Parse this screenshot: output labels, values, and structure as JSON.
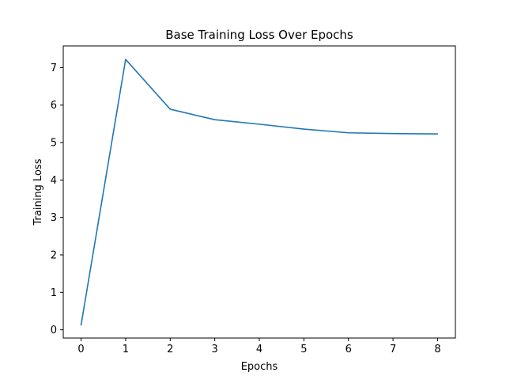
{
  "chart_data": {
    "type": "line",
    "title": "Base Training Loss Over Epochs",
    "xlabel": "Epochs",
    "ylabel": "Training Loss",
    "x": [
      0,
      1,
      2,
      3,
      4,
      5,
      6,
      7,
      8
    ],
    "series": [
      {
        "values": [
          0.13,
          7.22,
          5.89,
          5.61,
          5.49,
          5.36,
          5.26,
          5.24,
          5.23
        ],
        "color": "#1f77b4"
      }
    ],
    "xlim": [
      -0.4,
      8.4
    ],
    "ylim": [
      -0.22,
      7.58
    ],
    "xticks": [
      "0",
      "1",
      "2",
      "3",
      "4",
      "5",
      "6",
      "7",
      "8"
    ],
    "yticks": [
      "0",
      "1",
      "2",
      "3",
      "4",
      "5",
      "6",
      "7"
    ],
    "grid": false,
    "legend": "none"
  }
}
